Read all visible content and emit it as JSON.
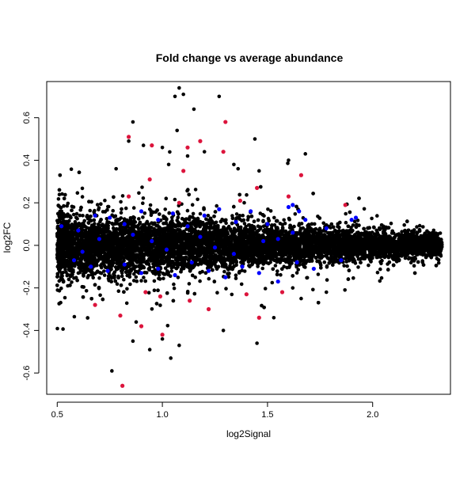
{
  "chart_data": {
    "type": "scatter",
    "title": "Fold change vs average abundance",
    "xlabel": "log2Signal",
    "ylabel": "log2FC",
    "xlim": [
      0.45,
      2.37
    ],
    "ylim": [
      -0.7,
      0.77
    ],
    "x_ticks": [
      0.5,
      1.0,
      1.5,
      2.0
    ],
    "x_tick_labels": [
      "0.5",
      "1.0",
      "1.5",
      "2.0"
    ],
    "y_ticks": [
      -0.6,
      -0.4,
      -0.2,
      0.0,
      0.2,
      0.4,
      0.6
    ],
    "y_tick_labels": [
      "-0.6",
      "-0.4",
      "-0.2",
      "0.0",
      "0.2",
      "0.4",
      "0.6"
    ],
    "grid": false,
    "legend": "none",
    "series_colors": {
      "all": "#000000",
      "highlight_blue": "#0000ff",
      "highlight_red": "#dc143c"
    },
    "black_points": [
      [
        1.08,
        0.74
      ],
      [
        1.06,
        0.7
      ],
      [
        1.1,
        0.71
      ],
      [
        1.27,
        0.7
      ],
      [
        1.15,
        0.64
      ],
      [
        0.86,
        0.58
      ],
      [
        1.07,
        0.54
      ],
      [
        0.84,
        0.49
      ],
      [
        1.44,
        0.5
      ],
      [
        0.91,
        0.47
      ],
      [
        1.0,
        0.46
      ],
      [
        1.68,
        0.43
      ],
      [
        1.2,
        0.44
      ],
      [
        1.12,
        0.42
      ],
      [
        1.6,
        0.4
      ],
      [
        1.34,
        0.38
      ],
      [
        0.78,
        0.36
      ],
      [
        1.03,
        0.38
      ],
      [
        1.36,
        0.36
      ],
      [
        1.46,
        0.35
      ],
      [
        0.76,
        -0.59
      ],
      [
        1.04,
        -0.53
      ],
      [
        0.94,
        -0.49
      ],
      [
        1.45,
        -0.46
      ],
      [
        1.08,
        -0.47
      ],
      [
        0.86,
        -0.45
      ],
      [
        1.0,
        -0.44
      ],
      [
        1.29,
        -0.4
      ],
      [
        1.53,
        -0.34
      ],
      [
        1.66,
        -0.25
      ],
      [
        1.62,
        -0.2
      ],
      [
        1.78,
        -0.22
      ],
      [
        2.32,
        0.0
      ],
      [
        2.25,
        0.01
      ],
      [
        2.15,
        0.02
      ]
    ],
    "blue_points": [
      [
        0.52,
        0.09
      ],
      [
        0.6,
        0.07
      ],
      [
        0.68,
        0.14
      ],
      [
        0.75,
        0.13
      ],
      [
        0.82,
        0.1
      ],
      [
        0.9,
        0.16
      ],
      [
        0.98,
        0.12
      ],
      [
        1.05,
        0.15
      ],
      [
        1.12,
        0.09
      ],
      [
        1.2,
        0.14
      ],
      [
        1.27,
        0.17
      ],
      [
        1.35,
        0.11
      ],
      [
        1.42,
        0.16
      ],
      [
        1.5,
        0.1
      ],
      [
        1.6,
        0.18
      ],
      [
        1.68,
        0.12
      ],
      [
        1.78,
        0.08
      ],
      [
        1.92,
        0.13
      ],
      [
        0.58,
        -0.07
      ],
      [
        0.66,
        -0.1
      ],
      [
        0.74,
        -0.12
      ],
      [
        0.82,
        -0.09
      ],
      [
        0.9,
        -0.13
      ],
      [
        0.98,
        -0.11
      ],
      [
        1.06,
        -0.14
      ],
      [
        1.14,
        -0.08
      ],
      [
        1.22,
        -0.12
      ],
      [
        1.3,
        -0.15
      ],
      [
        1.38,
        -0.1
      ],
      [
        1.46,
        -0.13
      ],
      [
        1.55,
        -0.17
      ],
      [
        1.64,
        -0.08
      ],
      [
        1.72,
        -0.11
      ],
      [
        1.85,
        -0.07
      ],
      [
        0.7,
        0.03
      ],
      [
        0.86,
        0.05
      ],
      [
        1.02,
        -0.02
      ],
      [
        1.18,
        0.04
      ],
      [
        1.34,
        -0.04
      ],
      [
        1.48,
        0.02
      ],
      [
        1.62,
        0.06
      ],
      [
        0.62,
        -0.03
      ],
      [
        0.95,
        0.02
      ],
      [
        1.25,
        -0.01
      ],
      [
        1.55,
        0.03
      ],
      [
        1.65,
        0.16
      ],
      [
        1.62,
        0.19
      ],
      [
        1.9,
        0.12
      ]
    ],
    "red_points": [
      [
        0.81,
        -0.66
      ],
      [
        1.3,
        0.58
      ],
      [
        0.84,
        0.51
      ],
      [
        0.95,
        0.47
      ],
      [
        1.18,
        0.49
      ],
      [
        1.12,
        0.46
      ],
      [
        1.29,
        0.44
      ],
      [
        1.66,
        0.33
      ],
      [
        1.1,
        0.35
      ],
      [
        0.94,
        0.31
      ],
      [
        1.45,
        0.27
      ],
      [
        1.6,
        0.23
      ],
      [
        0.84,
        0.23
      ],
      [
        1.87,
        0.19
      ],
      [
        1.37,
        0.21
      ],
      [
        1.08,
        0.2
      ],
      [
        0.68,
        -0.28
      ],
      [
        0.8,
        -0.33
      ],
      [
        0.9,
        -0.38
      ],
      [
        1.0,
        -0.42
      ],
      [
        0.92,
        -0.22
      ],
      [
        1.13,
        -0.26
      ],
      [
        1.4,
        -0.23
      ],
      [
        1.57,
        -0.22
      ],
      [
        1.46,
        -0.34
      ],
      [
        1.22,
        -0.3
      ],
      [
        0.99,
        -0.24
      ]
    ]
  }
}
